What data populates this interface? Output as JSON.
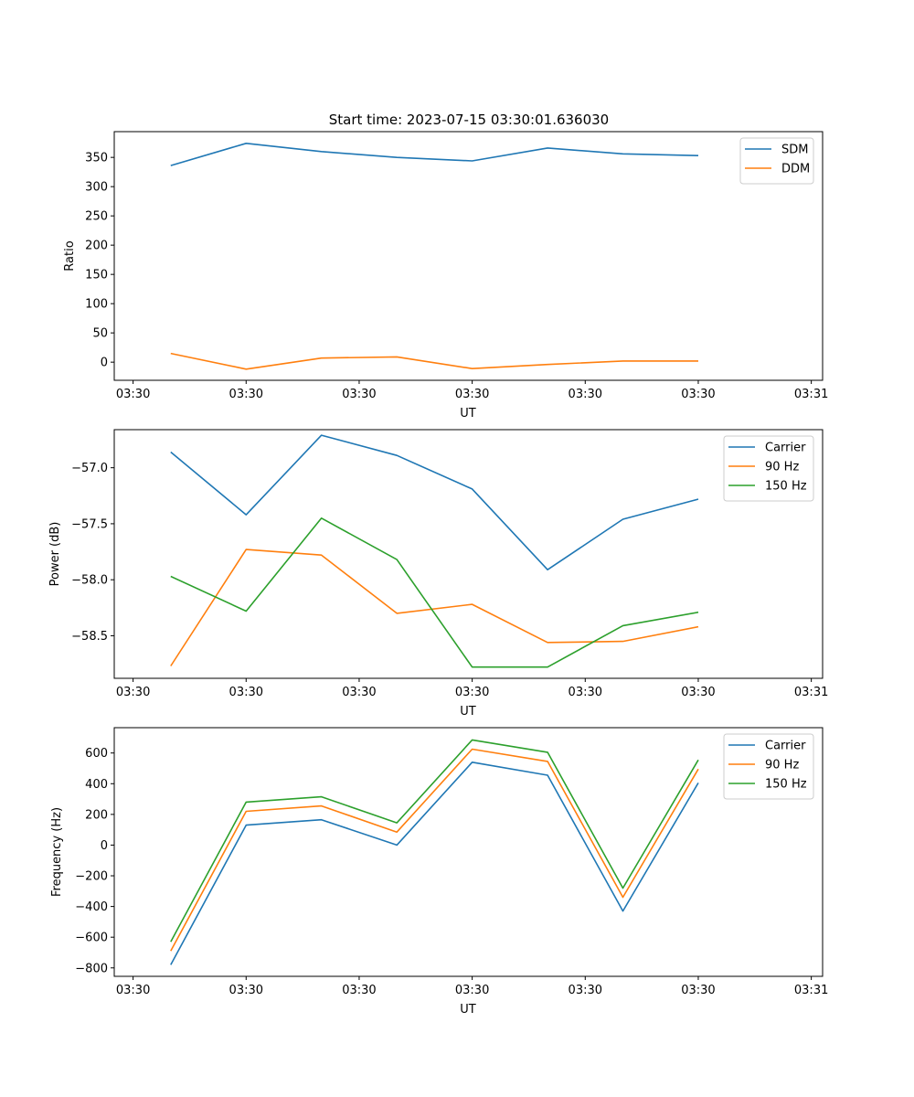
{
  "figure_title": "Start time: 2023-07-15 03:30:01.636030",
  "chart_data": [
    {
      "type": "line",
      "title": "Start time: 2023-07-15 03:30:01.636030",
      "xlabel": "UT",
      "ylabel": "Ratio",
      "x": [
        1,
        2,
        3,
        4,
        5,
        6,
        7,
        8
      ],
      "xlim": [
        0.25,
        9.65
      ],
      "xticks": [
        0.5,
        2,
        3.5,
        5,
        6.5,
        8,
        9.5
      ],
      "xtick_labels": [
        "03:30",
        "03:30",
        "03:30",
        "03:30",
        "03:30",
        "03:30",
        "03:31"
      ],
      "ylim": [
        -31,
        394
      ],
      "yticks": [
        0,
        50,
        100,
        150,
        200,
        250,
        300,
        350
      ],
      "ytick_labels": [
        "0",
        "50",
        "100",
        "150",
        "200",
        "250",
        "300",
        "350"
      ],
      "legend_position": "top-right",
      "series": [
        {
          "name": "SDM",
          "color": "#1f77b4",
          "values": [
            336,
            374,
            360,
            350,
            344,
            366,
            356,
            353
          ]
        },
        {
          "name": "DDM",
          "color": "#ff7f0e",
          "values": [
            15,
            -12,
            7,
            9,
            -11,
            -4,
            2,
            2
          ]
        }
      ]
    },
    {
      "type": "line",
      "title": "",
      "xlabel": "UT",
      "ylabel": "Power (dB)",
      "x": [
        1,
        2,
        3,
        4,
        5,
        6,
        7,
        8
      ],
      "xlim": [
        0.25,
        9.65
      ],
      "xticks": [
        0.5,
        2,
        3.5,
        5,
        6.5,
        8,
        9.5
      ],
      "xtick_labels": [
        "03:30",
        "03:30",
        "03:30",
        "03:30",
        "03:30",
        "03:30",
        "03:31"
      ],
      "ylim": [
        -58.88,
        -56.66
      ],
      "yticks": [
        -58.5,
        -58.0,
        -57.5,
        -57.0
      ],
      "ytick_labels": [
        "−58.5",
        "−58.0",
        "−57.5",
        "−57.0"
      ],
      "legend_position": "top-right",
      "series": [
        {
          "name": "Carrier",
          "color": "#1f77b4",
          "values": [
            -56.86,
            -57.42,
            -56.71,
            -56.89,
            -57.19,
            -57.91,
            -57.46,
            -57.28
          ]
        },
        {
          "name": "90 Hz",
          "color": "#ff7f0e",
          "values": [
            -58.77,
            -57.73,
            -57.78,
            -58.3,
            -58.22,
            -58.56,
            -58.55,
            -58.42
          ]
        },
        {
          "name": "150 Hz",
          "color": "#2ca02c",
          "values": [
            -57.97,
            -58.28,
            -57.45,
            -57.82,
            -58.78,
            -58.78,
            -58.41,
            -58.29
          ]
        }
      ]
    },
    {
      "type": "line",
      "title": "",
      "xlabel": "UT",
      "ylabel": "Frequency (Hz)",
      "x": [
        1,
        2,
        3,
        4,
        5,
        6,
        7,
        8
      ],
      "xlim": [
        0.25,
        9.65
      ],
      "xticks": [
        0.5,
        2,
        3.5,
        5,
        6.5,
        8,
        9.5
      ],
      "xtick_labels": [
        "03:30",
        "03:30",
        "03:30",
        "03:30",
        "03:30",
        "03:30",
        "03:31"
      ],
      "ylim": [
        -855,
        765
      ],
      "yticks": [
        -800,
        -600,
        -400,
        -200,
        0,
        200,
        400,
        600
      ],
      "ytick_labels": [
        "−800",
        "−600",
        "−400",
        "−200",
        "0",
        "200",
        "400",
        "600"
      ],
      "legend_position": "top-right",
      "series": [
        {
          "name": "Carrier",
          "color": "#1f77b4",
          "values": [
            -780,
            130,
            165,
            0,
            540,
            455,
            -430,
            405
          ]
        },
        {
          "name": "90 Hz",
          "color": "#ff7f0e",
          "values": [
            -690,
            220,
            255,
            85,
            625,
            545,
            -340,
            495
          ]
        },
        {
          "name": "150 Hz",
          "color": "#2ca02c",
          "values": [
            -630,
            280,
            315,
            145,
            685,
            605,
            -280,
            555
          ]
        }
      ]
    }
  ]
}
